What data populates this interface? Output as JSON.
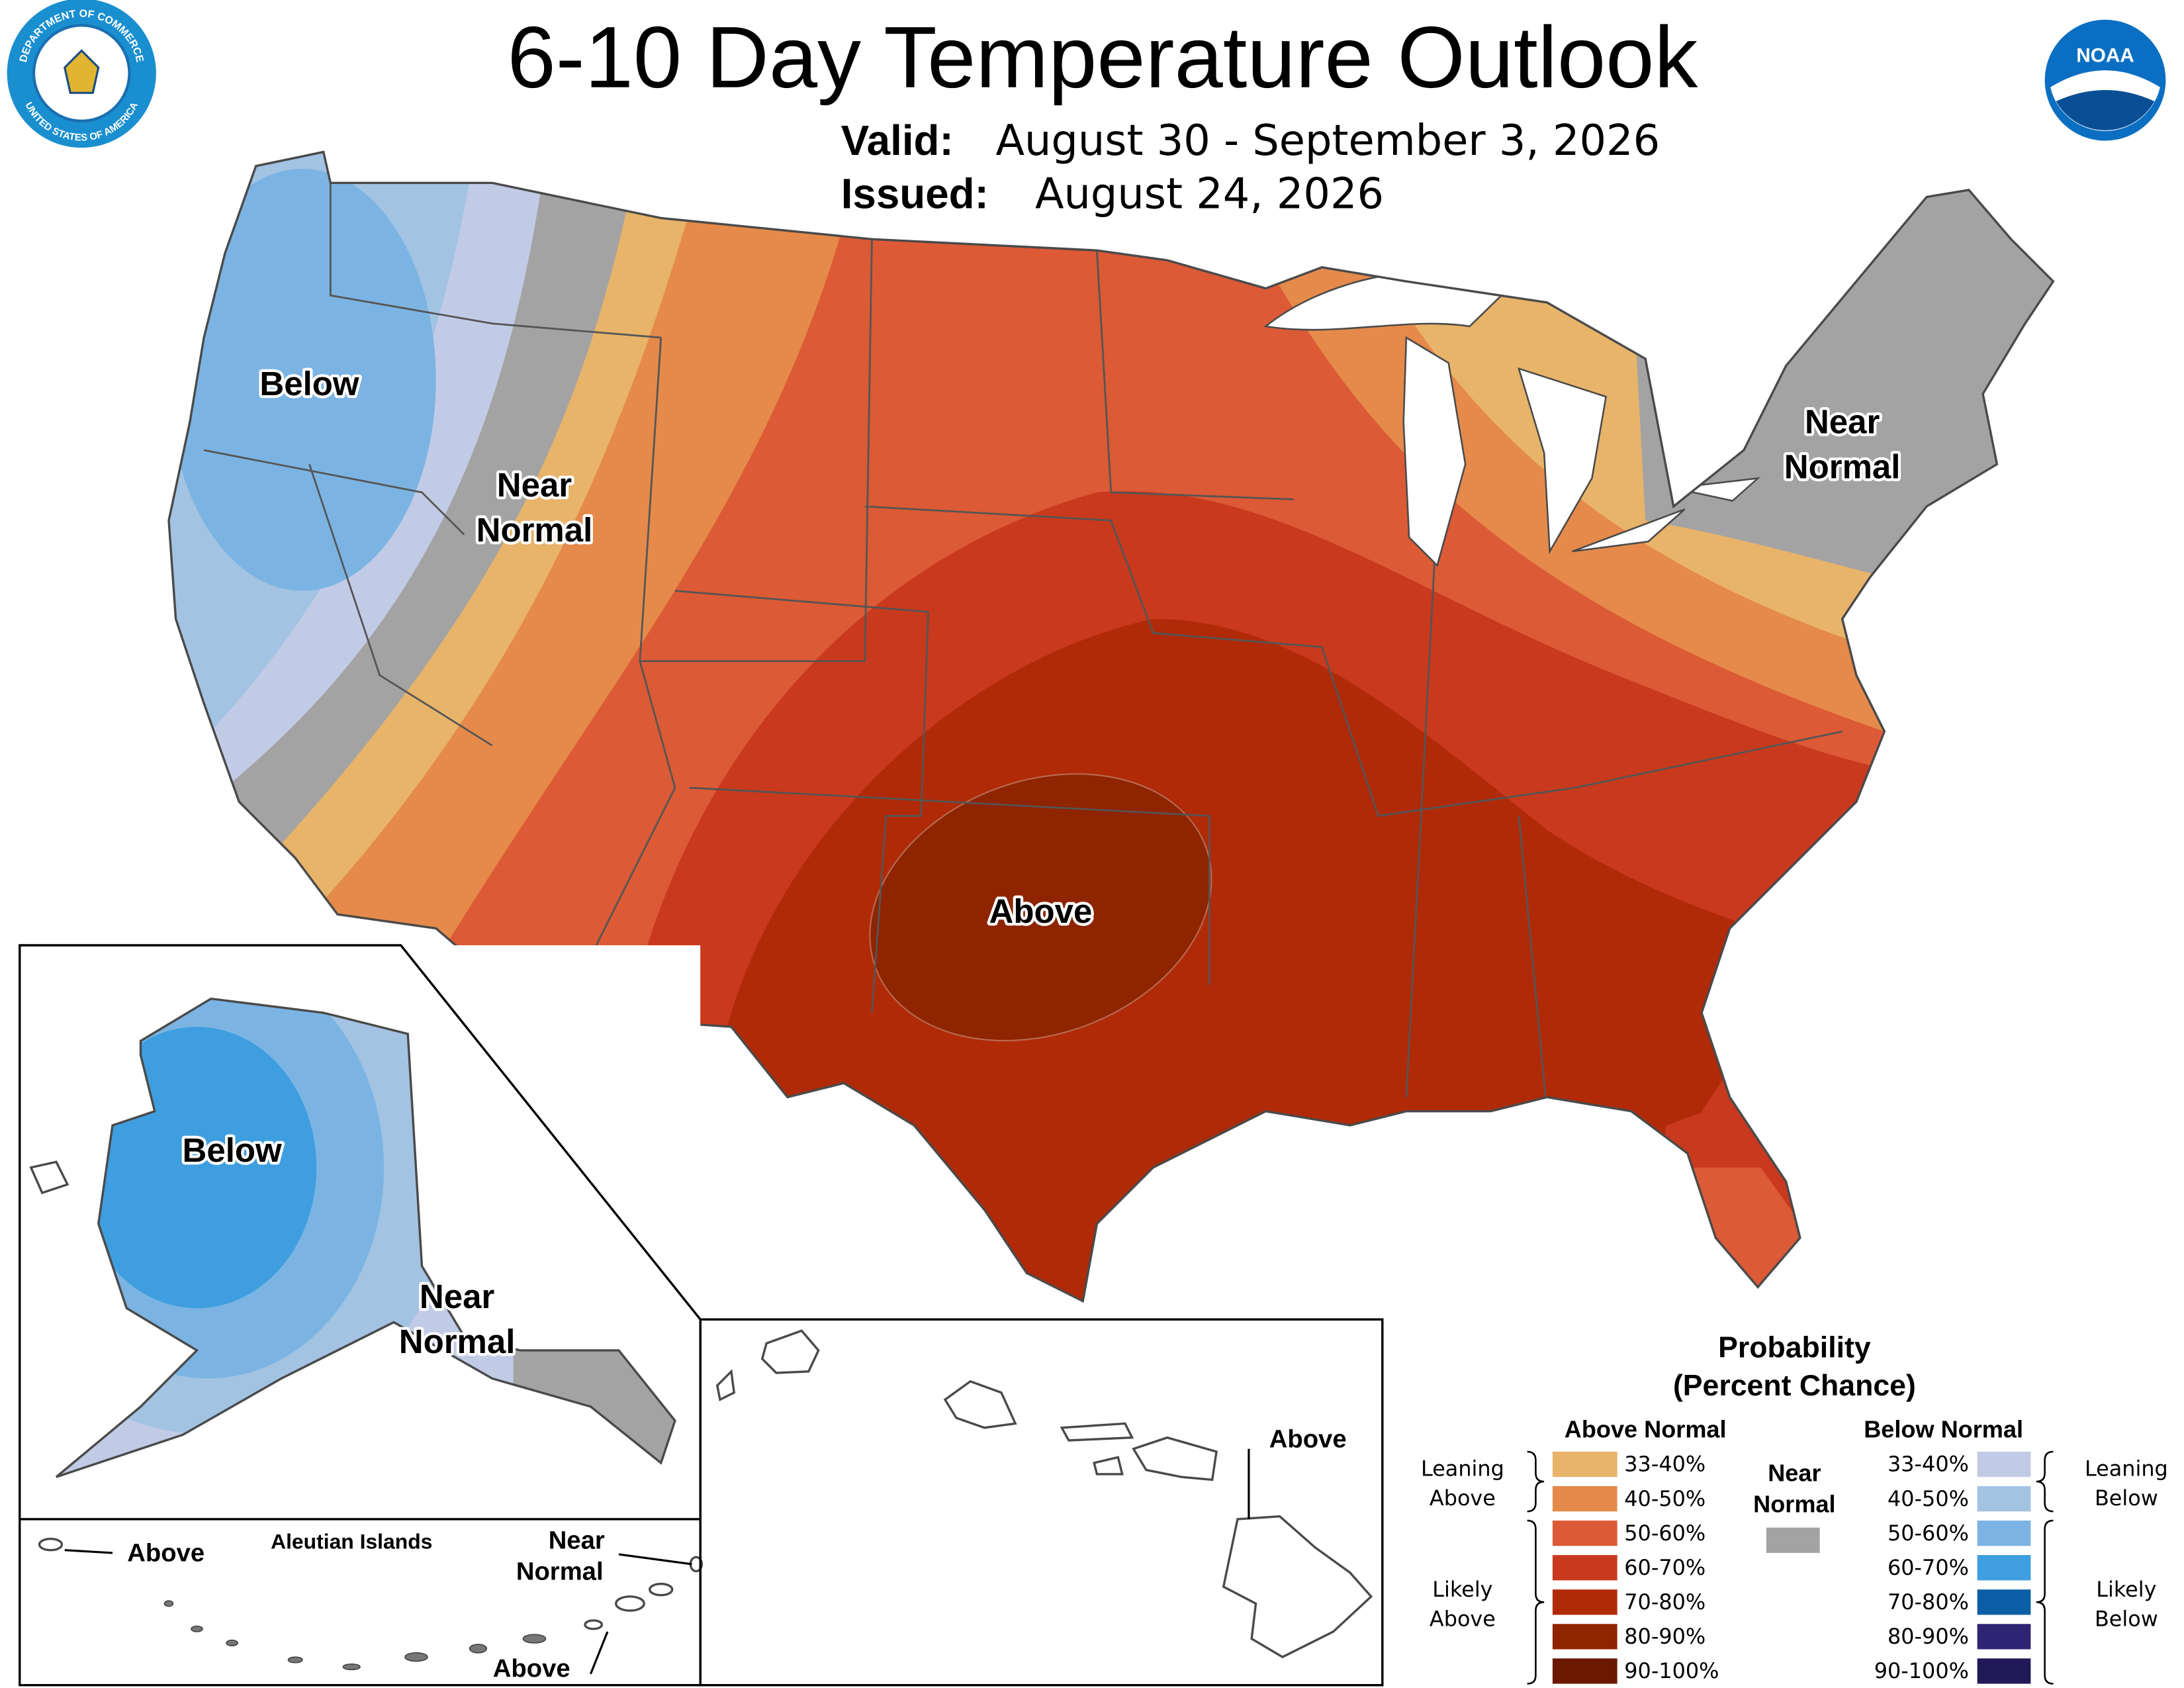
{
  "header": {
    "title": "6-10 Day Temperature Outlook",
    "valid_label": "Valid:",
    "valid_dates": "August 30 - September 3, 2026",
    "issued_label": "Issued:",
    "issued_date": "August 24, 2026"
  },
  "logos": {
    "doc_seal_top": "DEPARTMENT OF COMMERCE",
    "doc_seal_bottom": "UNITED STATES OF AMERICA",
    "noaa": "NOAA"
  },
  "map_labels": {
    "conus_below": "Below",
    "conus_near_west": [
      "Near",
      "Normal"
    ],
    "conus_above": "Above",
    "conus_near_east": [
      "Near",
      "Normal"
    ],
    "alaska_below": "Below",
    "alaska_near": [
      "Near",
      "Normal"
    ],
    "aleutian_title": "Aleutian Islands",
    "aleutian_above_west": "Above",
    "aleutian_near": [
      "Near",
      "Normal"
    ],
    "aleutian_above_east": "Above",
    "hawaii_above": "Above"
  },
  "legend": {
    "title": [
      "Probability",
      "(Percent Chance)"
    ],
    "above_normal": {
      "heading": "Above Normal",
      "items": [
        {
          "label": "33-40%",
          "color": "#e8b46a"
        },
        {
          "label": "40-50%",
          "color": "#e58a4a"
        },
        {
          "label": "50-60%",
          "color": "#dc5a35"
        },
        {
          "label": "60-70%",
          "color": "#c9391d"
        },
        {
          "label": "70-80%",
          "color": "#b02a08"
        },
        {
          "label": "80-90%",
          "color": "#8e2400"
        },
        {
          "label": "90-100%",
          "color": "#6b1800"
        }
      ]
    },
    "near_normal": {
      "heading": [
        "Near",
        "Normal"
      ],
      "color": "#a3a3a3"
    },
    "below_normal": {
      "heading": "Below Normal",
      "items": [
        {
          "label": "33-40%",
          "color": "#c2cbe6"
        },
        {
          "label": "40-50%",
          "color": "#a3c3e3"
        },
        {
          "label": "50-60%",
          "color": "#7bb4e3"
        },
        {
          "label": "60-70%",
          "color": "#3e9edf"
        },
        {
          "label": "70-80%",
          "color": "#0c5fa6"
        },
        {
          "label": "80-90%",
          "color": "#2f2473"
        },
        {
          "label": "90-100%",
          "color": "#221a56"
        }
      ]
    },
    "brackets": {
      "leaning_above": [
        "Leaning",
        "Above"
      ],
      "likely_above": [
        "Likely",
        "Above"
      ],
      "leaning_below": [
        "Leaning",
        "Below"
      ],
      "likely_below": [
        "Likely",
        "Below"
      ]
    }
  }
}
